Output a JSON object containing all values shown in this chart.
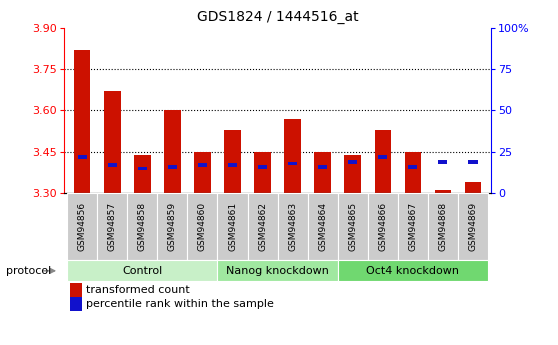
{
  "title": "GDS1824 / 1444516_at",
  "samples": [
    "GSM94856",
    "GSM94857",
    "GSM94858",
    "GSM94859",
    "GSM94860",
    "GSM94861",
    "GSM94862",
    "GSM94863",
    "GSM94864",
    "GSM94865",
    "GSM94866",
    "GSM94867",
    "GSM94868",
    "GSM94869"
  ],
  "red_values": [
    3.82,
    3.67,
    3.44,
    3.6,
    3.45,
    3.53,
    3.45,
    3.57,
    3.45,
    3.44,
    3.53,
    3.45,
    3.31,
    3.34
  ],
  "blue_percentile": [
    22,
    17,
    15,
    16,
    17,
    17,
    16,
    18,
    16,
    19,
    22,
    16,
    19,
    19
  ],
  "y_min": 3.3,
  "y_max": 3.9,
  "y_ticks": [
    3.3,
    3.45,
    3.6,
    3.75,
    3.9
  ],
  "right_y_ticks": [
    0,
    25,
    50,
    75,
    100
  ],
  "groups": [
    {
      "label": "Control",
      "start": 0,
      "end": 5
    },
    {
      "label": "Nanog knockdown",
      "start": 5,
      "end": 9
    },
    {
      "label": "Oct4 knockdown",
      "start": 9,
      "end": 14
    }
  ],
  "group_colors": [
    "#c8f0c8",
    "#a0e8a0",
    "#70d870"
  ],
  "red_color": "#cc1100",
  "blue_color": "#1111cc",
  "bar_width": 0.55,
  "gray_color": "#cccccc",
  "legend_red": "transformed count",
  "legend_blue": "percentile rank within the sample",
  "protocol_label": "protocol"
}
